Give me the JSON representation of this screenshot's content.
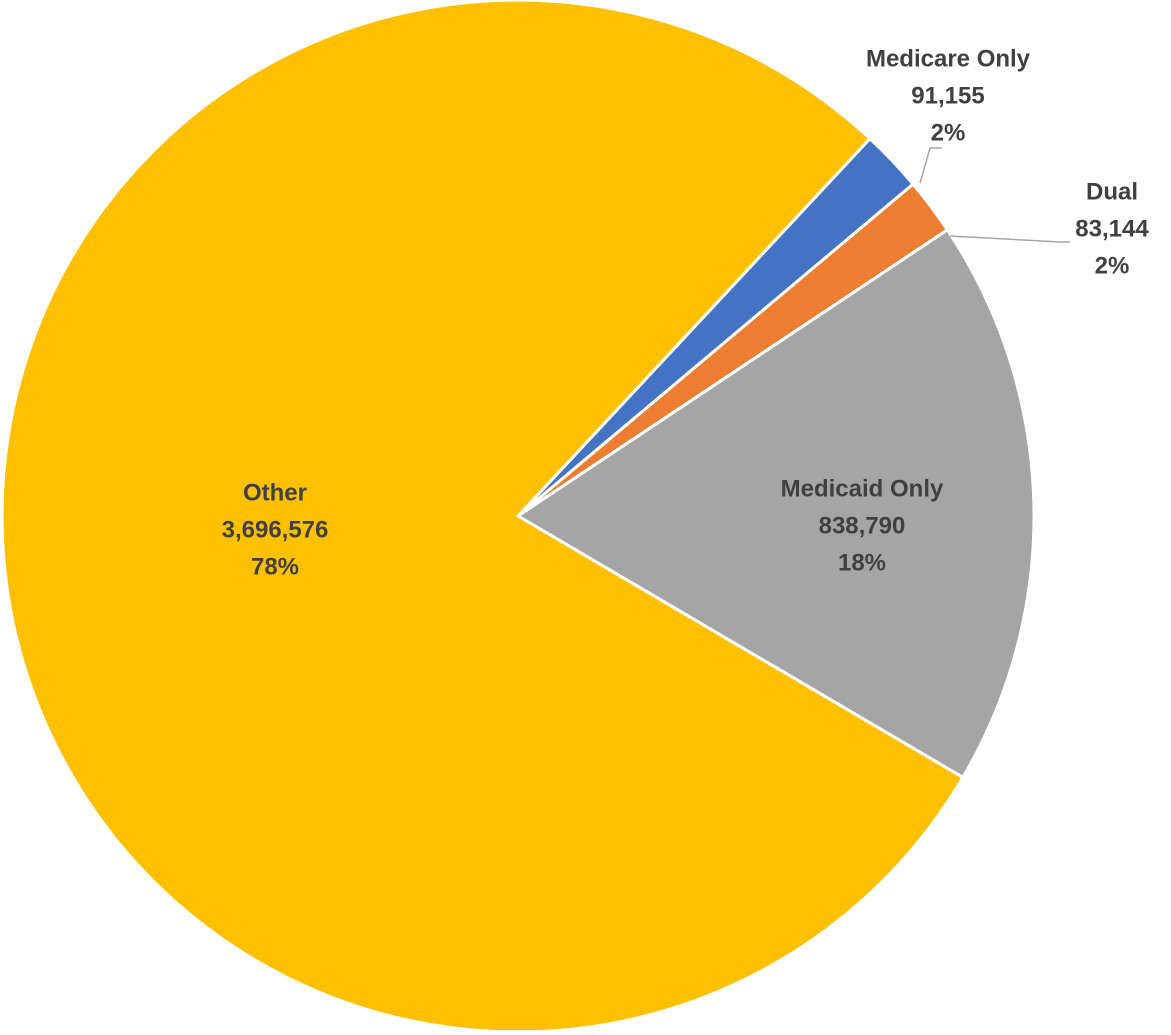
{
  "chart_data": {
    "type": "pie",
    "title": "",
    "start_angle_deg": 223,
    "direction": "clockwise",
    "slices": [
      {
        "label": "Medicare Only",
        "value": 91155,
        "value_text": "91,155",
        "percent_text": "2%",
        "color": "#4472C4"
      },
      {
        "label": "Dual",
        "value": 83144,
        "value_text": "83,144",
        "percent_text": "2%",
        "color": "#ED7D31"
      },
      {
        "label": "Medicaid Only",
        "value": 838790,
        "value_text": "838,790",
        "percent_text": "18%",
        "color": "#A5A5A5"
      },
      {
        "label": "Other",
        "value": 3696576,
        "value_text": "3,696,576",
        "percent_text": "78%",
        "color": "#FFC000"
      }
    ],
    "label_position": "outside for small slices, inside for large slices"
  }
}
